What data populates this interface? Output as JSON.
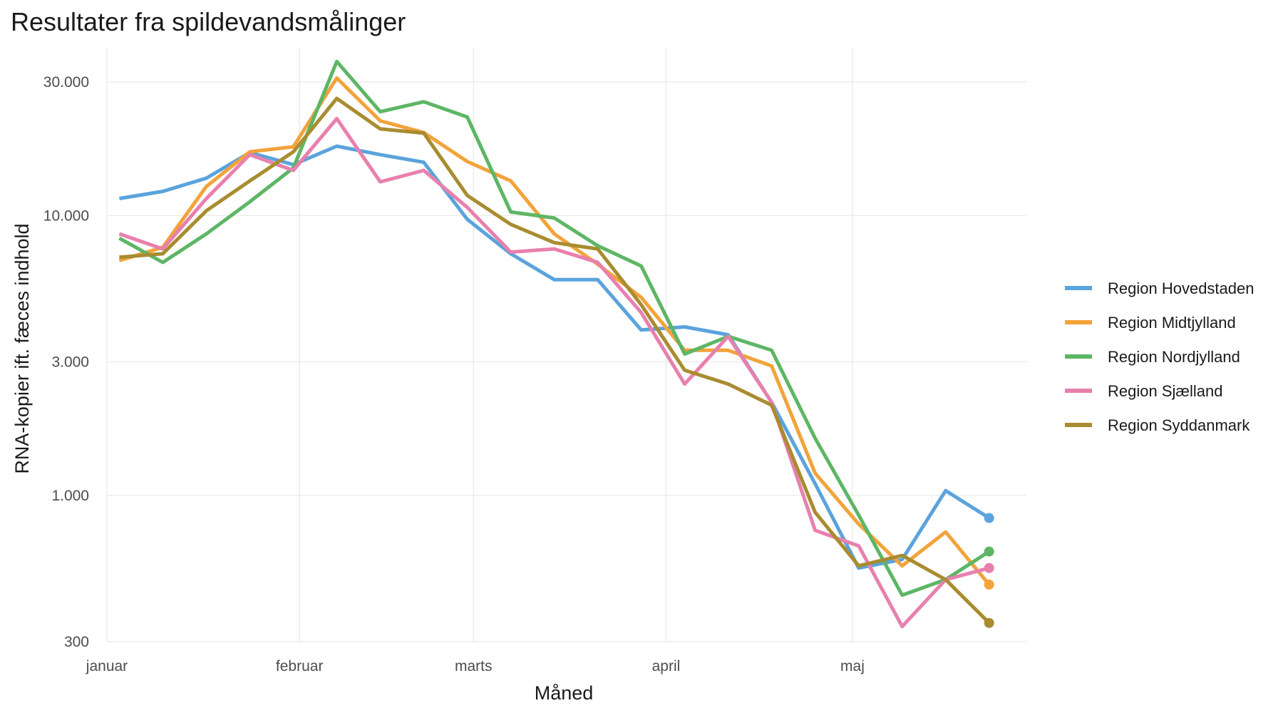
{
  "chart_data": {
    "type": "line",
    "title": "Resultater fra spildevandsmålinger",
    "xlabel": "Måned",
    "ylabel": "RNA-kopier ift. fæces indhold",
    "y_scale": "log",
    "ylim": [
      300,
      40000
    ],
    "x_tick_labels": [
      "januar",
      "februar",
      "marts",
      "april",
      "maj"
    ],
    "y_ticks": [
      300,
      1000,
      3000,
      10000,
      30000
    ],
    "y_tick_labels": [
      "300",
      "1.000",
      "3.000",
      "10.000",
      "30.000"
    ],
    "x_dates": [
      "2022-01-03",
      "2022-01-10",
      "2022-01-17",
      "2022-01-24",
      "2022-01-31",
      "2022-02-07",
      "2022-02-14",
      "2022-02-21",
      "2022-02-28",
      "2022-03-07",
      "2022-03-14",
      "2022-03-21",
      "2022-03-28",
      "2022-04-04",
      "2022-04-11",
      "2022-04-18",
      "2022-04-25",
      "2022-05-02",
      "2022-05-09",
      "2022-05-16",
      "2022-05-23"
    ],
    "x_range": [
      "2022-01-01",
      "2022-05-29"
    ],
    "grid": true,
    "legend_position": "right",
    "show_last_point": true,
    "series": [
      {
        "name": "Region Hovedstaden",
        "color": "#5BA3DC",
        "values": [
          11500,
          12200,
          13600,
          16800,
          15200,
          17700,
          16500,
          15500,
          9700,
          7300,
          5900,
          5900,
          3900,
          4000,
          3750,
          2150,
          1100,
          550,
          590,
          1040,
          830
        ]
      },
      {
        "name": "Region Midtjylland",
        "color": "#F2A33A",
        "values": [
          6900,
          7700,
          12700,
          16900,
          17600,
          31000,
          21800,
          19800,
          15600,
          13300,
          8600,
          6700,
          5100,
          3300,
          3300,
          2900,
          1200,
          790,
          560,
          740,
          480
        ]
      },
      {
        "name": "Region Nordjylland",
        "color": "#5DB665",
        "values": [
          8300,
          6800,
          8600,
          11200,
          14800,
          35500,
          23500,
          25500,
          22500,
          10300,
          9800,
          7800,
          6600,
          3200,
          3700,
          3300,
          1600,
          850,
          440,
          500,
          630
        ]
      },
      {
        "name": "Region Sjælland",
        "color": "#E880AE",
        "values": [
          8600,
          7600,
          11500,
          16500,
          14500,
          22200,
          13200,
          14500,
          10700,
          7400,
          7600,
          6800,
          4500,
          2500,
          3700,
          2150,
          750,
          660,
          340,
          500,
          550
        ]
      },
      {
        "name": "Region Syddanmark",
        "color": "#A88C30",
        "values": [
          7100,
          7300,
          10400,
          13300,
          16900,
          26200,
          20400,
          19700,
          11800,
          9300,
          8000,
          7600,
          4800,
          2800,
          2500,
          2100,
          870,
          560,
          610,
          500,
          350
        ]
      }
    ]
  }
}
